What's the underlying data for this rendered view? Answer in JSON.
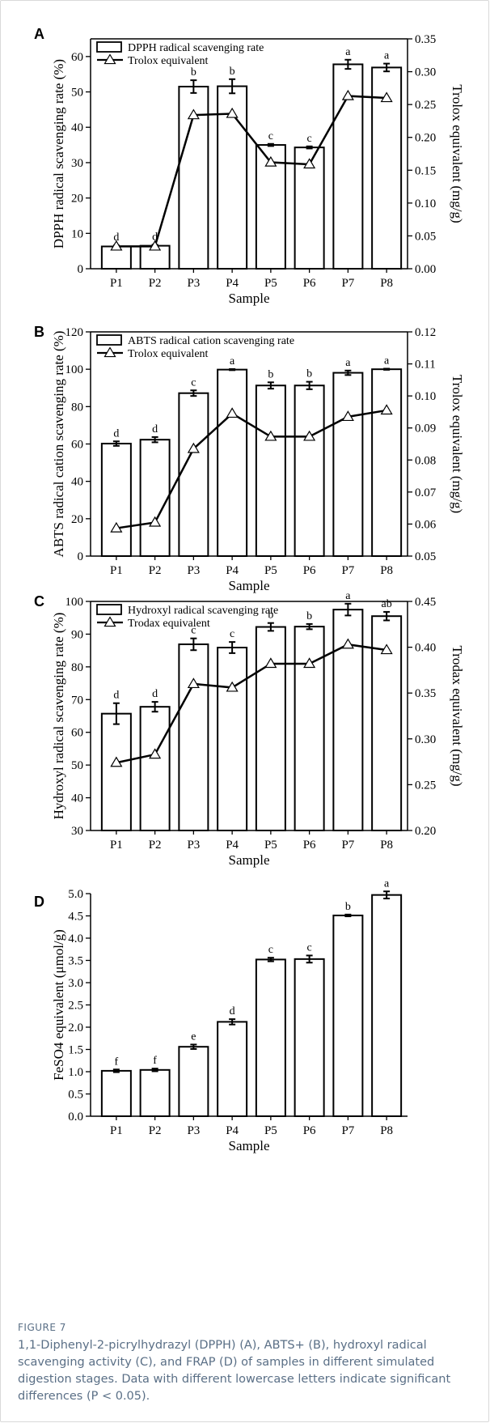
{
  "figure_label": "FIGURE 7",
  "caption": "1,1-Diphenyl-2-picrylhydrazyl (DPPH) (A), ABTS+ (B), hydroxyl radical scavenging activity (C), and FRAP (D) of samples in different simulated digestion stages. Data with different lowercase letters indicate significant differences (P < 0.05).",
  "chart_data": [
    {
      "panel": "A",
      "type": "bar",
      "categories": [
        "P1",
        "P2",
        "P3",
        "P4",
        "P5",
        "P6",
        "P7",
        "P8"
      ],
      "xlabel": "Sample",
      "ylabel": "DPPH radical scavenging rate (%)",
      "y2label": "Trolox equivalent (mg/g)",
      "ylim": [
        0,
        65
      ],
      "yticks": [
        0,
        10,
        20,
        30,
        40,
        50,
        60
      ],
      "y2lim": [
        0,
        0.35
      ],
      "y2ticks": [
        "0.00",
        "0.05",
        "0.10",
        "0.15",
        "0.20",
        "0.25",
        "0.30",
        "0.35"
      ],
      "series": [
        {
          "name": "DPPH radical scavenging rate",
          "kind": "bar",
          "values": [
            6.3,
            6.5,
            51.5,
            51.6,
            35.0,
            34.3,
            57.8,
            56.9
          ],
          "errors": [
            0.3,
            0.3,
            1.8,
            2.0,
            0.3,
            0.3,
            1.3,
            1.1
          ]
        },
        {
          "name": "Trolox equivalent",
          "kind": "line",
          "axis": "right",
          "values": [
            0.034,
            0.034,
            0.234,
            0.236,
            0.162,
            0.159,
            0.263,
            0.26
          ]
        }
      ],
      "labels": [
        "d",
        "d",
        "b",
        "b",
        "c",
        "c",
        "a",
        "a"
      ],
      "legend": "top-left"
    },
    {
      "panel": "B",
      "type": "bar",
      "categories": [
        "P1",
        "P2",
        "P3",
        "P4",
        "P5",
        "P6",
        "P7",
        "P8"
      ],
      "xlabel": "Sample",
      "ylabel": "ABTS radical cation scavenging rate (%)",
      "y2label": "Trolox equivalent (mg/g)",
      "ylim": [
        0,
        120
      ],
      "yticks": [
        0,
        20,
        40,
        60,
        80,
        100,
        120
      ],
      "y2lim": [
        0.05,
        0.12
      ],
      "y2ticks": [
        "0.05",
        "0.06",
        "0.07",
        "0.08",
        "0.09",
        "0.10",
        "0.11",
        "0.12"
      ],
      "series": [
        {
          "name": "ABTS radical cation scavenging rate",
          "kind": "bar",
          "values": [
            60.2,
            62.3,
            87.2,
            99.8,
            91.3,
            91.3,
            98.1,
            100.0
          ],
          "errors": [
            1.2,
            1.4,
            1.5,
            0.3,
            1.7,
            2.0,
            1.2,
            0.3
          ]
        },
        {
          "name": "Trolox equivalent",
          "kind": "line",
          "axis": "right",
          "values": [
            0.0587,
            0.0605,
            0.0835,
            0.0945,
            0.0873,
            0.0873,
            0.0935,
            0.0955
          ]
        }
      ],
      "labels": [
        "d",
        "d",
        "c",
        "a",
        "b",
        "b",
        "a",
        "a"
      ],
      "legend": "top-left"
    },
    {
      "panel": "C",
      "type": "bar",
      "categories": [
        "P1",
        "P2",
        "P3",
        "P4",
        "P5",
        "P6",
        "P7",
        "P8"
      ],
      "xlabel": "Sample",
      "ylabel": "Hydroxyl radical scavenging rate (%)",
      "y2label": "Trodax equivalent (mg/g)",
      "ylim": [
        30,
        100
      ],
      "yticks": [
        30,
        40,
        50,
        60,
        70,
        80,
        90,
        100
      ],
      "y2lim": [
        0.2,
        0.45
      ],
      "y2ticks": [
        "0.20",
        "0.25",
        "0.30",
        "0.35",
        "0.40",
        "0.45"
      ],
      "series": [
        {
          "name": "Hydroxyl radical scavenging rate",
          "kind": "bar",
          "values": [
            65.7,
            67.8,
            86.9,
            85.9,
            92.2,
            92.3,
            97.5,
            95.5
          ],
          "errors": [
            3.2,
            1.5,
            1.8,
            1.7,
            1.2,
            0.8,
            1.8,
            1.3
          ]
        },
        {
          "name": "Trodax equivalent",
          "kind": "line",
          "axis": "right",
          "values": [
            0.274,
            0.283,
            0.36,
            0.356,
            0.382,
            0.382,
            0.403,
            0.397
          ]
        }
      ],
      "labels": [
        "d",
        "d",
        "c",
        "c",
        "b",
        "b",
        "a",
        "ab"
      ],
      "legend": "top-left"
    },
    {
      "panel": "D",
      "type": "bar",
      "categories": [
        "P1",
        "P2",
        "P3",
        "P4",
        "P5",
        "P6",
        "P7",
        "P8"
      ],
      "xlabel": "Sample",
      "ylabel": "FeSO4 equivalent (μmol/g)",
      "ylim": [
        0,
        5.0
      ],
      "yticks": [
        "0.0",
        "0.5",
        "1.0",
        "1.5",
        "2.0",
        "2.5",
        "3.0",
        "3.5",
        "4.0",
        "4.5",
        "5.0"
      ],
      "series": [
        {
          "name": "FRAP",
          "kind": "bar",
          "values": [
            1.02,
            1.04,
            1.56,
            2.12,
            3.52,
            3.53,
            4.51,
            4.97
          ],
          "errors": [
            0.03,
            0.03,
            0.05,
            0.06,
            0.04,
            0.08,
            0.02,
            0.08
          ]
        }
      ],
      "labels": [
        "f",
        "f",
        "e",
        "d",
        "c",
        "c",
        "b",
        "a"
      ]
    }
  ]
}
